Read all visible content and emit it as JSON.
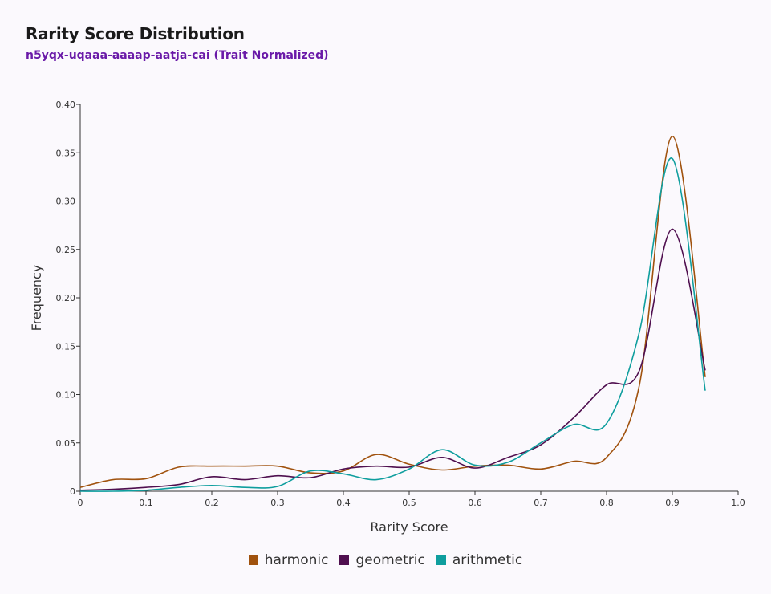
{
  "header": {
    "title": "Rarity Score Distribution",
    "subtitle": "n5yqx-uqaaa-aaaap-aatja-cai (Trait Normalized)"
  },
  "chart_data": {
    "type": "line",
    "xlabel": "Rarity Score",
    "ylabel": "Frequency",
    "xlim": [
      0,
      1.0
    ],
    "ylim": [
      0,
      0.4
    ],
    "x_ticks": [
      0,
      0.1,
      0.2,
      0.3,
      0.4,
      0.5,
      0.6,
      0.7,
      0.8,
      0.9,
      1.0
    ],
    "x_tick_labels": [
      "0",
      "0.1",
      "0.2",
      "0.3",
      "0.4",
      "0.5",
      "0.6",
      "0.7",
      "0.8",
      "0.9",
      "1.0"
    ],
    "y_ticks": [
      0,
      0.05,
      0.1,
      0.15,
      0.2,
      0.25,
      0.3,
      0.35,
      0.4
    ],
    "y_tick_labels": [
      "0",
      "0.05",
      "0.10",
      "0.15",
      "0.20",
      "0.25",
      "0.30",
      "0.35",
      "0.40"
    ],
    "grid": false,
    "legend_position": "bottom-center",
    "series": [
      {
        "name": "harmonic",
        "color": "#a0520e",
        "points": [
          [
            0,
            0.004
          ],
          [
            0.05,
            0.012
          ],
          [
            0.1,
            0.013
          ],
          [
            0.15,
            0.025
          ],
          [
            0.2,
            0.026
          ],
          [
            0.25,
            0.026
          ],
          [
            0.3,
            0.026
          ],
          [
            0.35,
            0.019
          ],
          [
            0.4,
            0.021
          ],
          [
            0.45,
            0.038
          ],
          [
            0.5,
            0.028
          ],
          [
            0.55,
            0.022
          ],
          [
            0.6,
            0.026
          ],
          [
            0.65,
            0.027
          ],
          [
            0.7,
            0.023
          ],
          [
            0.75,
            0.031
          ],
          [
            0.8,
            0.035
          ],
          [
            0.85,
            0.11
          ],
          [
            0.9,
            0.367
          ],
          [
            0.95,
            0.118
          ]
        ]
      },
      {
        "name": "geometric",
        "color": "#4f0f4f",
        "points": [
          [
            0,
            0.001
          ],
          [
            0.05,
            0.002
          ],
          [
            0.1,
            0.004
          ],
          [
            0.15,
            0.007
          ],
          [
            0.2,
            0.015
          ],
          [
            0.25,
            0.012
          ],
          [
            0.3,
            0.016
          ],
          [
            0.35,
            0.014
          ],
          [
            0.4,
            0.023
          ],
          [
            0.45,
            0.026
          ],
          [
            0.5,
            0.025
          ],
          [
            0.55,
            0.035
          ],
          [
            0.6,
            0.024
          ],
          [
            0.65,
            0.035
          ],
          [
            0.7,
            0.048
          ],
          [
            0.75,
            0.076
          ],
          [
            0.8,
            0.11
          ],
          [
            0.85,
            0.125
          ],
          [
            0.9,
            0.271
          ],
          [
            0.95,
            0.125
          ]
        ]
      },
      {
        "name": "arithmetic",
        "color": "#0f9e9e",
        "points": [
          [
            0,
            0.0
          ],
          [
            0.05,
            0.0
          ],
          [
            0.1,
            0.001
          ],
          [
            0.15,
            0.004
          ],
          [
            0.2,
            0.006
          ],
          [
            0.25,
            0.004
          ],
          [
            0.3,
            0.005
          ],
          [
            0.35,
            0.021
          ],
          [
            0.4,
            0.018
          ],
          [
            0.45,
            0.012
          ],
          [
            0.5,
            0.023
          ],
          [
            0.55,
            0.043
          ],
          [
            0.6,
            0.027
          ],
          [
            0.65,
            0.03
          ],
          [
            0.7,
            0.05
          ],
          [
            0.75,
            0.069
          ],
          [
            0.8,
            0.07
          ],
          [
            0.85,
            0.165
          ],
          [
            0.9,
            0.344
          ],
          [
            0.95,
            0.104
          ]
        ]
      }
    ]
  }
}
